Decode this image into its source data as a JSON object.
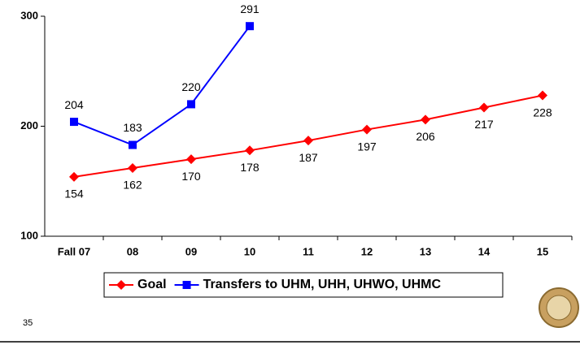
{
  "chart_data": {
    "type": "line",
    "categories": [
      "Fall 07",
      "08",
      "09",
      "10",
      "11",
      "12",
      "13",
      "14",
      "15"
    ],
    "series": [
      {
        "name": "Goal",
        "color": "#ff0000",
        "marker": "diamond",
        "values": [
          154,
          162,
          170,
          178,
          187,
          197,
          206,
          217,
          228
        ]
      },
      {
        "name": "Transfers to UHM, UHH, UHWO, UHMC",
        "color": "#0000ff",
        "marker": "square",
        "values": [
          204,
          183,
          220,
          291,
          null,
          null,
          null,
          null,
          null
        ]
      }
    ],
    "ylim": [
      100,
      300
    ],
    "yticks": [
      100,
      200,
      300
    ],
    "grid": false,
    "legend": "bottom"
  },
  "page_number": "35"
}
